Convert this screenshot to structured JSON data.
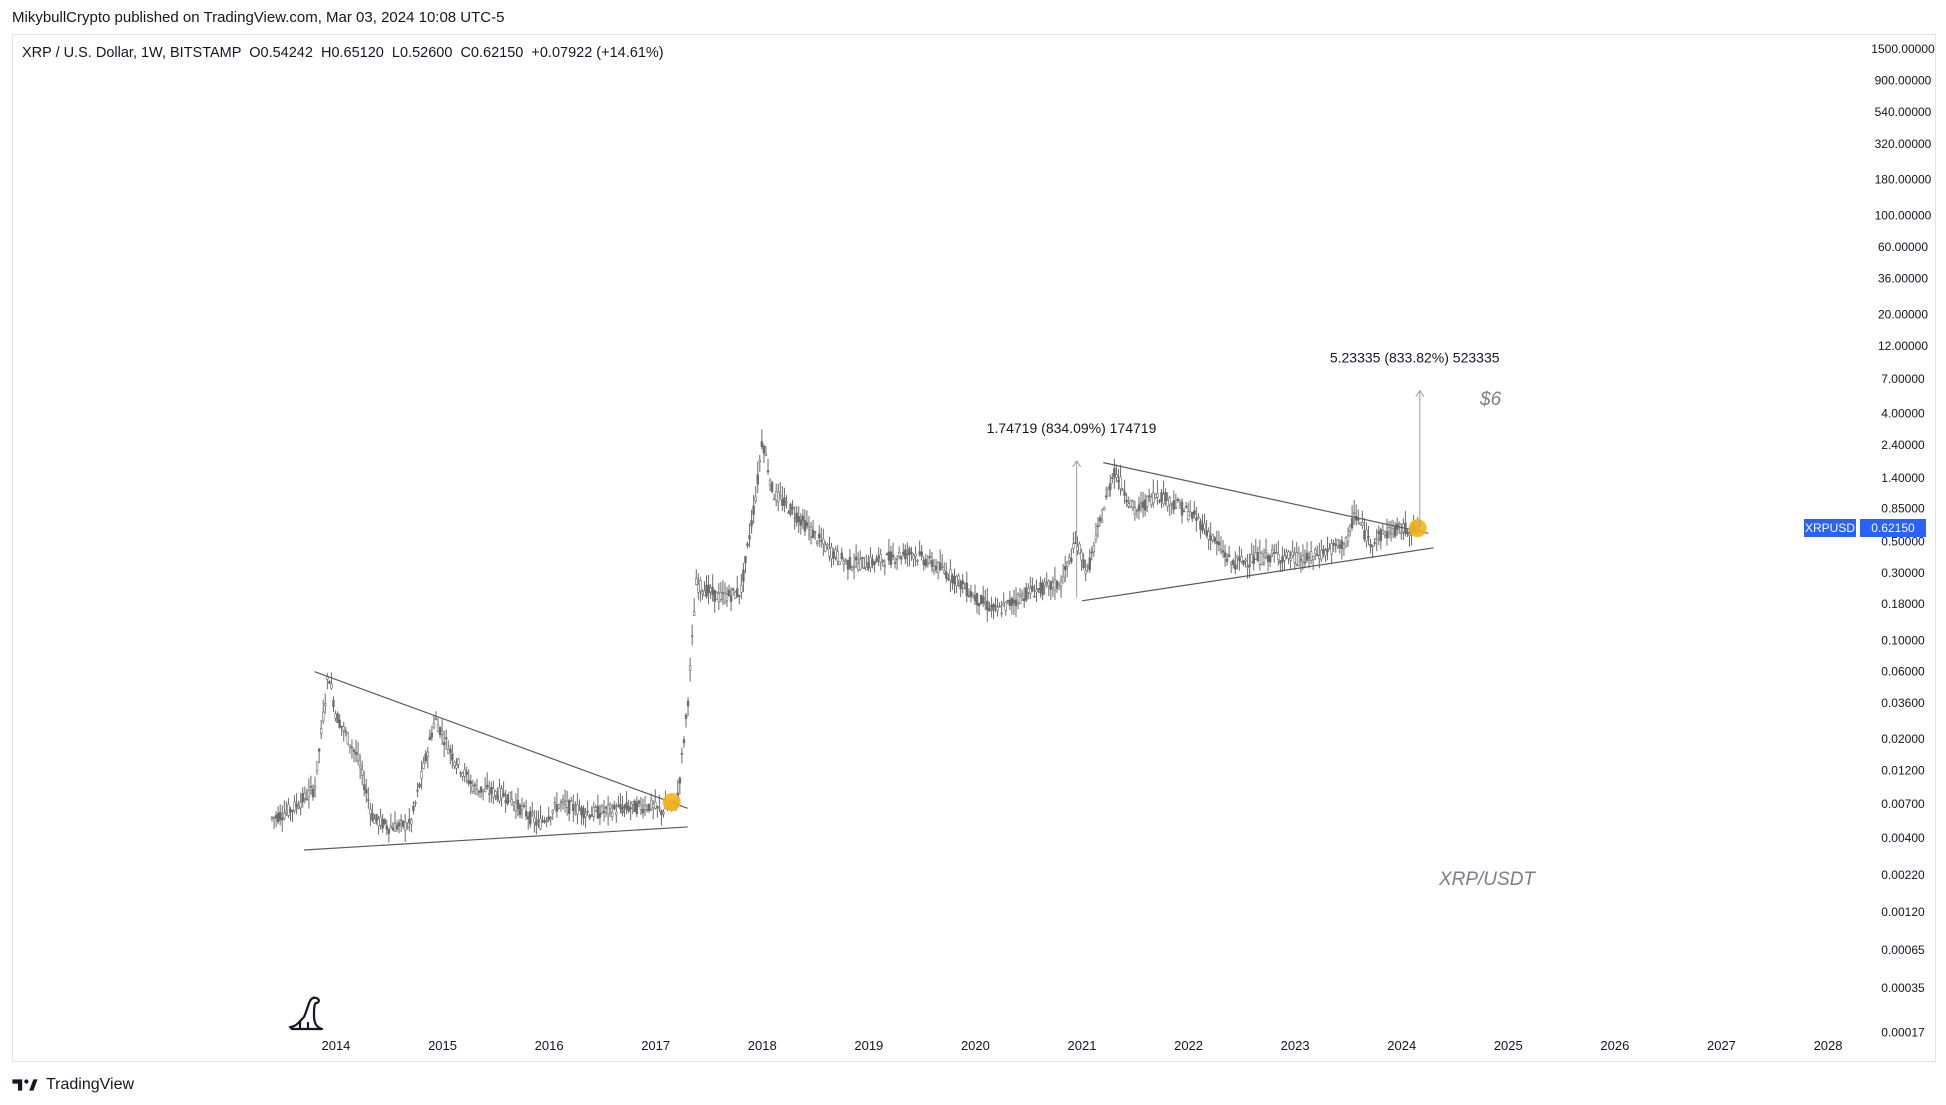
{
  "header": {
    "published_line": "MikybullCrypto published on TradingView.com, Mar 03, 2024 10:08 UTC-5",
    "symbol_line": "XRP / U.S. Dollar, 1W, BITSTAMP  O0.54242  H0.65120  L0.52600  C0.62150  +0.07922 (+14.61%)"
  },
  "footer": {
    "brand": "TradingView"
  },
  "price_tag": {
    "symbol": "XRPUSD",
    "value": "0.62150",
    "price": 0.6215,
    "color": "#2962ff"
  },
  "annotations": {
    "measure_1": "1.74719 (834.09%) 174719",
    "measure_2": "5.23335 (833.82%) 523335",
    "target": "$6",
    "pair_watermark": "XRP/USDT"
  },
  "colors": {
    "candles": "#6b6b6b",
    "trendlines": "#5a5a5a",
    "breakout_marker": "#f5b21b",
    "price_tag": "#2962ff"
  },
  "chart_data": {
    "type": "candlestick",
    "scale": "log",
    "interval": "1W",
    "grid": false,
    "y_ticks": [
      "1500.00000",
      "900.00000",
      "540.00000",
      "320.00000",
      "180.00000",
      "100.00000",
      "60.00000",
      "36.00000",
      "20.00000",
      "12.00000",
      "7.00000",
      "4.00000",
      "2.40000",
      "1.40000",
      "0.85000",
      "0.50000",
      "0.30000",
      "0.18000",
      "0.10000",
      "0.06000",
      "0.03600",
      "0.02000",
      "0.01200",
      "0.00700",
      "0.00400",
      "0.00220",
      "0.00120",
      "0.00065",
      "0.00035",
      "0.00017"
    ],
    "x_ticks": [
      "2014",
      "2015",
      "2016",
      "2017",
      "2018",
      "2019",
      "2020",
      "2021",
      "2022",
      "2023",
      "2024",
      "2025",
      "2026",
      "2027",
      "2028"
    ],
    "x_range": [
      2013.4,
      2028.3
    ],
    "y_range": [
      0.00015,
      1800
    ],
    "price_path": [
      [
        2013.4,
        0.0055
      ],
      [
        2013.6,
        0.0065
      ],
      [
        2013.8,
        0.009
      ],
      [
        2013.93,
        0.06
      ],
      [
        2014.0,
        0.03
      ],
      [
        2014.2,
        0.015
      ],
      [
        2014.35,
        0.0055
      ],
      [
        2014.5,
        0.0048
      ],
      [
        2014.7,
        0.005
      ],
      [
        2014.93,
        0.028
      ],
      [
        2015.1,
        0.015
      ],
      [
        2015.3,
        0.009
      ],
      [
        2015.6,
        0.008
      ],
      [
        2015.9,
        0.005
      ],
      [
        2016.1,
        0.007
      ],
      [
        2016.4,
        0.006
      ],
      [
        2016.7,
        0.0065
      ],
      [
        2016.95,
        0.0068
      ],
      [
        2017.05,
        0.0062
      ],
      [
        2017.2,
        0.007
      ],
      [
        2017.3,
        0.035
      ],
      [
        2017.38,
        0.25
      ],
      [
        2017.6,
        0.2
      ],
      [
        2017.8,
        0.22
      ],
      [
        2017.95,
        1.2
      ],
      [
        2018.0,
        2.7
      ],
      [
        2018.1,
        1.1
      ],
      [
        2018.3,
        0.8
      ],
      [
        2018.6,
        0.45
      ],
      [
        2018.8,
        0.35
      ],
      [
        2019.0,
        0.35
      ],
      [
        2019.4,
        0.42
      ],
      [
        2019.8,
        0.28
      ],
      [
        2020.0,
        0.2
      ],
      [
        2020.2,
        0.16
      ],
      [
        2020.5,
        0.22
      ],
      [
        2020.8,
        0.25
      ],
      [
        2020.95,
        0.5
      ],
      [
        2021.05,
        0.3
      ],
      [
        2021.3,
        1.6
      ],
      [
        2021.5,
        0.8
      ],
      [
        2021.7,
        1.1
      ],
      [
        2021.9,
        0.9
      ],
      [
        2022.1,
        0.7
      ],
      [
        2022.4,
        0.35
      ],
      [
        2022.8,
        0.4
      ],
      [
        2023.1,
        0.37
      ],
      [
        2023.5,
        0.5
      ],
      [
        2023.55,
        0.8
      ],
      [
        2023.7,
        0.5
      ],
      [
        2023.9,
        0.6
      ],
      [
        2024.15,
        0.62
      ]
    ],
    "trendlines": [
      {
        "name": "upper_2013_2017",
        "from": [
          2013.8,
          0.06
        ],
        "to": [
          2017.3,
          0.0065
        ]
      },
      {
        "name": "lower_2013_2017",
        "from": [
          2013.7,
          0.0033
        ],
        "to": [
          2017.3,
          0.0048
        ]
      },
      {
        "name": "upper_2021_2024",
        "from": [
          2021.2,
          1.8
        ],
        "to": [
          2024.25,
          0.57
        ]
      },
      {
        "name": "lower_2021_2024",
        "from": [
          2021.0,
          0.19
        ],
        "to": [
          2024.3,
          0.45
        ]
      }
    ],
    "breakouts": [
      {
        "x": 2017.15,
        "y": 0.0072
      },
      {
        "x": 2024.15,
        "y": 0.62
      }
    ],
    "measures": [
      {
        "label": "1.74719 (834.09%) 174719",
        "x": 2020.95,
        "from": 0.2,
        "to": 1.85
      },
      {
        "label": "5.23335 (833.82%) 523335",
        "x": 2024.17,
        "from": 0.62,
        "to": 5.8
      }
    ]
  }
}
